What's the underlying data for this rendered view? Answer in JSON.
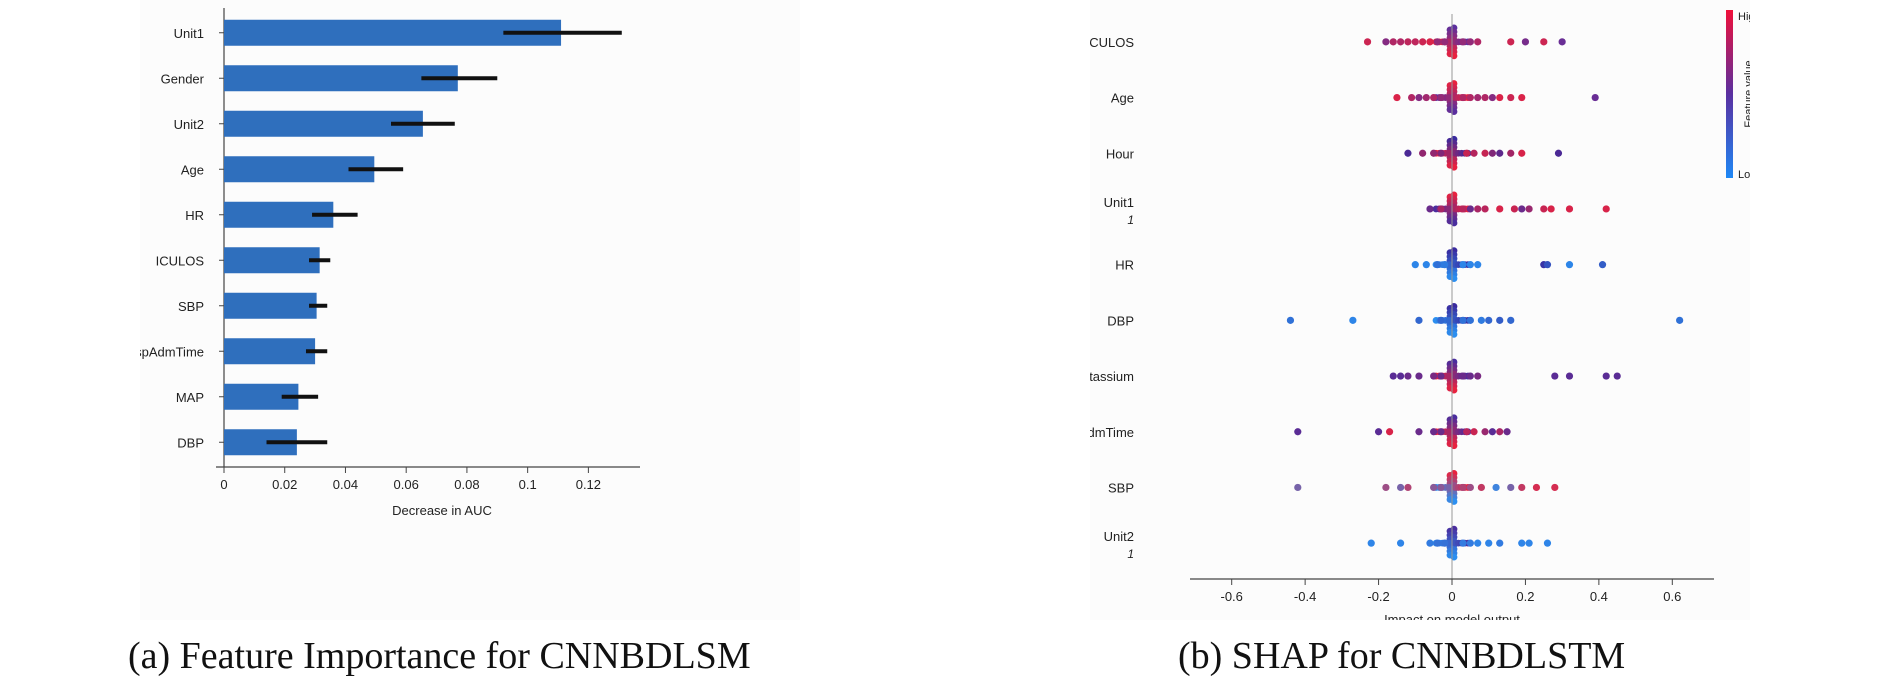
{
  "chart_data": [
    {
      "type": "bar",
      "orientation": "horizontal",
      "title": "Feature Importance for CNNBDLSM",
      "xlabel": "Decrease in AUC",
      "ylabel": "",
      "xlim": [
        0,
        0.137
      ],
      "xticks": [
        0,
        0.02,
        0.04,
        0.06,
        0.08,
        0.1,
        0.12
      ],
      "xtick_labels": [
        "0",
        "0.02",
        "0.04",
        "0.06",
        "0.08",
        "0.1",
        "0.12"
      ],
      "categories": [
        "Unit1",
        "Gender",
        "Unit2",
        "Age",
        "HR",
        "ICULOS",
        "SBP",
        "HospAdmTime",
        "MAP",
        "DBP"
      ],
      "values": [
        0.111,
        0.077,
        0.0655,
        0.0495,
        0.036,
        0.0315,
        0.0305,
        0.03,
        0.0245,
        0.024
      ],
      "error_low": [
        0.092,
        0.065,
        0.055,
        0.041,
        0.029,
        0.028,
        0.028,
        0.027,
        0.019,
        0.014
      ],
      "error_high": [
        0.131,
        0.09,
        0.076,
        0.059,
        0.044,
        0.035,
        0.034,
        0.034,
        0.031,
        0.034
      ],
      "bar_color": "#2f6fbd",
      "error_color": "#111111"
    },
    {
      "type": "scatter",
      "subtype": "beeswarm",
      "title": "SHAP for CNNBDLSTM",
      "xlabel": "Impact on model output",
      "ylabel": "",
      "xlim": [
        -0.67,
        0.67
      ],
      "xticks": [
        -0.6,
        -0.4,
        -0.2,
        0,
        0.2,
        0.4,
        0.6
      ],
      "xtick_labels": [
        "-0.6",
        "-0.4",
        "-0.2",
        "0",
        "0.2",
        "0.4",
        "0.6"
      ],
      "features": [
        {
          "name": "ICULOS",
          "sub": "",
          "low_color": "#e8223f",
          "high_color": "#5b2f9e",
          "points": [
            [
              -0.23,
              0.2
            ],
            [
              -0.18,
              0.7
            ],
            [
              -0.16,
              0.4
            ],
            [
              -0.14,
              0.4
            ],
            [
              -0.12,
              0.3
            ],
            [
              -0.1,
              0.3
            ],
            [
              -0.08,
              0.2
            ],
            [
              -0.06,
              0.1
            ],
            [
              -0.04,
              0.6
            ],
            [
              -0.02,
              0.6
            ],
            [
              0.03,
              0.6
            ],
            [
              0.05,
              0.6
            ],
            [
              0.07,
              0.4
            ],
            [
              0.16,
              0.2
            ],
            [
              0.2,
              0.8
            ],
            [
              0.25,
              0.2
            ],
            [
              0.3,
              0.9
            ]
          ]
        },
        {
          "name": "Age",
          "sub": "",
          "low_color": "#5b2f9e",
          "high_color": "#e8223f",
          "points": [
            [
              -0.15,
              0.9
            ],
            [
              -0.11,
              0.6
            ],
            [
              -0.09,
              0.3
            ],
            [
              -0.07,
              0.5
            ],
            [
              -0.05,
              0.6
            ],
            [
              -0.03,
              0.4
            ],
            [
              0.03,
              0.6
            ],
            [
              0.05,
              0.6
            ],
            [
              0.07,
              0.5
            ],
            [
              0.09,
              0.6
            ],
            [
              0.11,
              0.3
            ],
            [
              0.13,
              0.9
            ],
            [
              0.16,
              0.8
            ],
            [
              0.19,
              0.9
            ],
            [
              0.39,
              0.1
            ]
          ]
        },
        {
          "name": "Hour",
          "sub": "",
          "low_color": "#e8223f",
          "high_color": "#3a2a9e",
          "points": [
            [
              -0.12,
              0.9
            ],
            [
              -0.08,
              0.5
            ],
            [
              -0.05,
              0.5
            ],
            [
              -0.03,
              0.6
            ],
            [
              0.04,
              0.2
            ],
            [
              0.06,
              0.3
            ],
            [
              0.09,
              0.2
            ],
            [
              0.11,
              0.6
            ],
            [
              0.13,
              0.8
            ],
            [
              0.16,
              0.4
            ],
            [
              0.19,
              0.1
            ],
            [
              0.29,
              0.9
            ]
          ]
        },
        {
          "name": "Unit1",
          "sub": "1",
          "low_color": "#4a2d9e",
          "high_color": "#e8223f",
          "points": [
            [
              -0.06,
              0.2
            ],
            [
              -0.03,
              0.6
            ],
            [
              0.03,
              0.7
            ],
            [
              0.05,
              0.2
            ],
            [
              0.07,
              0.6
            ],
            [
              0.09,
              0.7
            ],
            [
              0.13,
              0.9
            ],
            [
              0.17,
              0.8
            ],
            [
              0.19,
              0.2
            ],
            [
              0.21,
              0.5
            ],
            [
              0.25,
              0.8
            ],
            [
              0.27,
              0.9
            ],
            [
              0.32,
              0.9
            ],
            [
              0.42,
              0.9
            ]
          ]
        },
        {
          "name": "HR",
          "sub": "",
          "low_color": "#2c8ff0",
          "high_color": "#3a2a9e",
          "points": [
            [
              -0.1,
              0.1
            ],
            [
              -0.07,
              0.1
            ],
            [
              -0.04,
              0.3
            ],
            [
              -0.02,
              0.2
            ],
            [
              0.03,
              0.1
            ],
            [
              0.05,
              0.1
            ],
            [
              0.07,
              0.1
            ],
            [
              0.25,
              0.9
            ],
            [
              0.26,
              0.6
            ],
            [
              0.32,
              0.1
            ],
            [
              0.41,
              0.5
            ]
          ]
        },
        {
          "name": "DBP",
          "sub": "",
          "low_color": "#2c8ff0",
          "high_color": "#3a2a9e",
          "points": [
            [
              -0.44,
              0.3
            ],
            [
              -0.27,
              0.1
            ],
            [
              -0.09,
              0.4
            ],
            [
              -0.03,
              0.4
            ],
            [
              0.03,
              0.3
            ],
            [
              0.05,
              0.3
            ],
            [
              0.08,
              0.2
            ],
            [
              0.1,
              0.4
            ],
            [
              0.13,
              0.5
            ],
            [
              0.16,
              0.4
            ],
            [
              0.62,
              0.3
            ]
          ]
        },
        {
          "name": "Potassium",
          "sub": "",
          "low_color": "#e8223f",
          "high_color": "#4a2d9e",
          "points": [
            [
              -0.16,
              0.9
            ],
            [
              -0.14,
              0.9
            ],
            [
              -0.12,
              0.8
            ],
            [
              -0.09,
              0.8
            ],
            [
              -0.05,
              0.7
            ],
            [
              -0.03,
              0.8
            ],
            [
              0.03,
              0.8
            ],
            [
              0.05,
              0.8
            ],
            [
              0.07,
              0.7
            ],
            [
              0.28,
              0.9
            ],
            [
              0.32,
              0.9
            ],
            [
              0.42,
              0.9
            ],
            [
              0.45,
              0.9
            ]
          ]
        },
        {
          "name": "HospAdmTime",
          "sub": "",
          "low_color": "#e8223f",
          "high_color": "#4a2d9e",
          "points": [
            [
              -0.42,
              0.9
            ],
            [
              -0.2,
              0.9
            ],
            [
              -0.17,
              0.1
            ],
            [
              -0.09,
              0.8
            ],
            [
              -0.05,
              0.8
            ],
            [
              -0.03,
              0.8
            ],
            [
              0.04,
              0.3
            ],
            [
              0.06,
              0.2
            ],
            [
              0.09,
              0.5
            ],
            [
              0.11,
              0.9
            ],
            [
              0.13,
              0.4
            ],
            [
              0.15,
              0.8
            ]
          ]
        },
        {
          "name": "SBP",
          "sub": "",
          "low_color": "#2c8ff0",
          "high_color": "#e8223f",
          "points": [
            [
              -0.42,
              0.4
            ],
            [
              -0.18,
              0.6
            ],
            [
              -0.14,
              0.4
            ],
            [
              -0.12,
              0.7
            ],
            [
              -0.05,
              0.5
            ],
            [
              -0.03,
              0.5
            ],
            [
              0.03,
              0.7
            ],
            [
              0.05,
              0.6
            ],
            [
              0.08,
              0.8
            ],
            [
              0.12,
              0.1
            ],
            [
              0.16,
              0.4
            ],
            [
              0.19,
              0.8
            ],
            [
              0.23,
              0.9
            ],
            [
              0.28,
              0.9
            ]
          ]
        },
        {
          "name": "Unit2",
          "sub": "1",
          "low_color": "#2c8ff0",
          "high_color": "#4a2d9e",
          "points": [
            [
              -0.22,
              0.1
            ],
            [
              -0.14,
              0.1
            ],
            [
              -0.06,
              0.2
            ],
            [
              -0.04,
              0.3
            ],
            [
              -0.02,
              0.3
            ],
            [
              0.03,
              0.2
            ],
            [
              0.05,
              0.2
            ],
            [
              0.07,
              0.1
            ],
            [
              0.1,
              0.1
            ],
            [
              0.13,
              0.2
            ],
            [
              0.19,
              0.1
            ],
            [
              0.21,
              0.1
            ],
            [
              0.26,
              0.1
            ]
          ]
        }
      ],
      "colorbar": {
        "high_label": "High",
        "low_label": "Low",
        "title": "Feature value",
        "low_color": "#1e88f5",
        "mid_color": "#5a2fa0",
        "high_color": "#f0103a"
      }
    }
  ],
  "captions": {
    "a": "(a) Feature Importance for CNNBDLSM",
    "b": "(b) SHAP for CNNBDLSTM"
  }
}
